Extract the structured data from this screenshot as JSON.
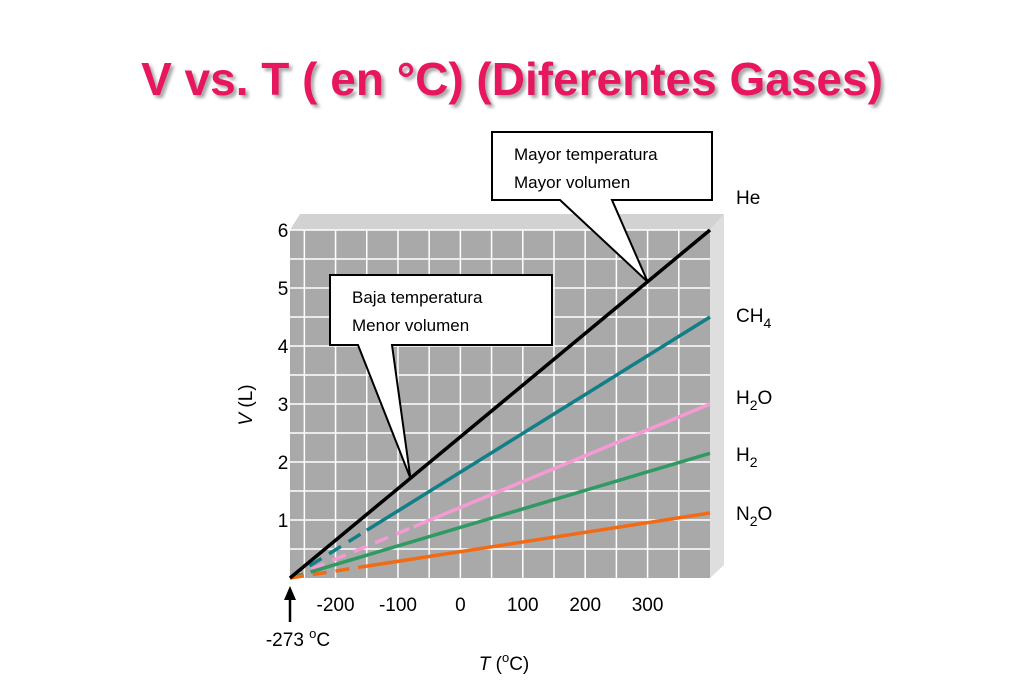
{
  "title": "V vs. T ( en °C) (Diferentes  Gases)",
  "title_color": "#e8155f",
  "chart_data": {
    "type": "line",
    "xlabel_italic": "T",
    "xlabel_rest": " (",
    "xlabel_sup": "o",
    "xlabel_end": "C)",
    "ylabel_italic": "V",
    "ylabel_rest": " (L)",
    "xlim": [
      -273,
      400
    ],
    "ylim": [
      0,
      6
    ],
    "x_ticks": [
      {
        "value": -200,
        "label": "-200"
      },
      {
        "value": -100,
        "label": "-100"
      },
      {
        "value": 0,
        "label": "0"
      },
      {
        "value": 100,
        "label": "100"
      },
      {
        "value": 200,
        "label": "200"
      },
      {
        "value": 300,
        "label": "300"
      }
    ],
    "y_ticks": [
      {
        "value": 1,
        "label": "1"
      },
      {
        "value": 2,
        "label": "2"
      },
      {
        "value": 3,
        "label": "3"
      },
      {
        "value": 4,
        "label": "4"
      },
      {
        "value": 5,
        "label": "5"
      },
      {
        "value": 6,
        "label": "6"
      }
    ],
    "grid": true,
    "origin_marker": {
      "value": -273,
      "label_main": "-273 ",
      "label_sup": "o",
      "label_end": "C"
    },
    "series": [
      {
        "name": "He",
        "sub": "",
        "name_end": "",
        "color": "#000000",
        "dashed_until_x": -273,
        "x": [
          -273,
          400
        ],
        "y": [
          0,
          6.0
        ]
      },
      {
        "name": "CH",
        "sub": "4",
        "name_end": "",
        "color": "#137e86",
        "dashed_until_x": -150,
        "x": [
          -273,
          400
        ],
        "y": [
          0,
          4.5
        ]
      },
      {
        "name": "H",
        "sub": "2",
        "name_end": "O",
        "color": "#f59bd3",
        "dashed_until_x": -75,
        "x": [
          -273,
          400
        ],
        "y": [
          0,
          3.0
        ]
      },
      {
        "name": "H",
        "sub": "2",
        "name_end": "",
        "color": "#2f9a63",
        "dashed_until_x": -240,
        "x": [
          -273,
          400
        ],
        "y": [
          0,
          2.15
        ]
      },
      {
        "name": "N",
        "sub": "2",
        "name_end": "O",
        "color": "#f26a13",
        "dashed_until_x": -150,
        "x": [
          -273,
          400
        ],
        "y": [
          0,
          1.12
        ]
      }
    ],
    "annotations": [
      {
        "id": "high",
        "lines": [
          "Mayor temperatura",
          "Mayor volumen"
        ],
        "target_series": "He",
        "target_x": 300
      },
      {
        "id": "low",
        "lines": [
          "Baja temperatura",
          "Menor volumen"
        ],
        "target_series": "He",
        "target_x": -80
      }
    ]
  },
  "colors": {
    "plot_bg": "#a9a9a9",
    "plot_top": "#d2d2d2",
    "plot_side": "#dedede",
    "grid": "#ffffff"
  }
}
